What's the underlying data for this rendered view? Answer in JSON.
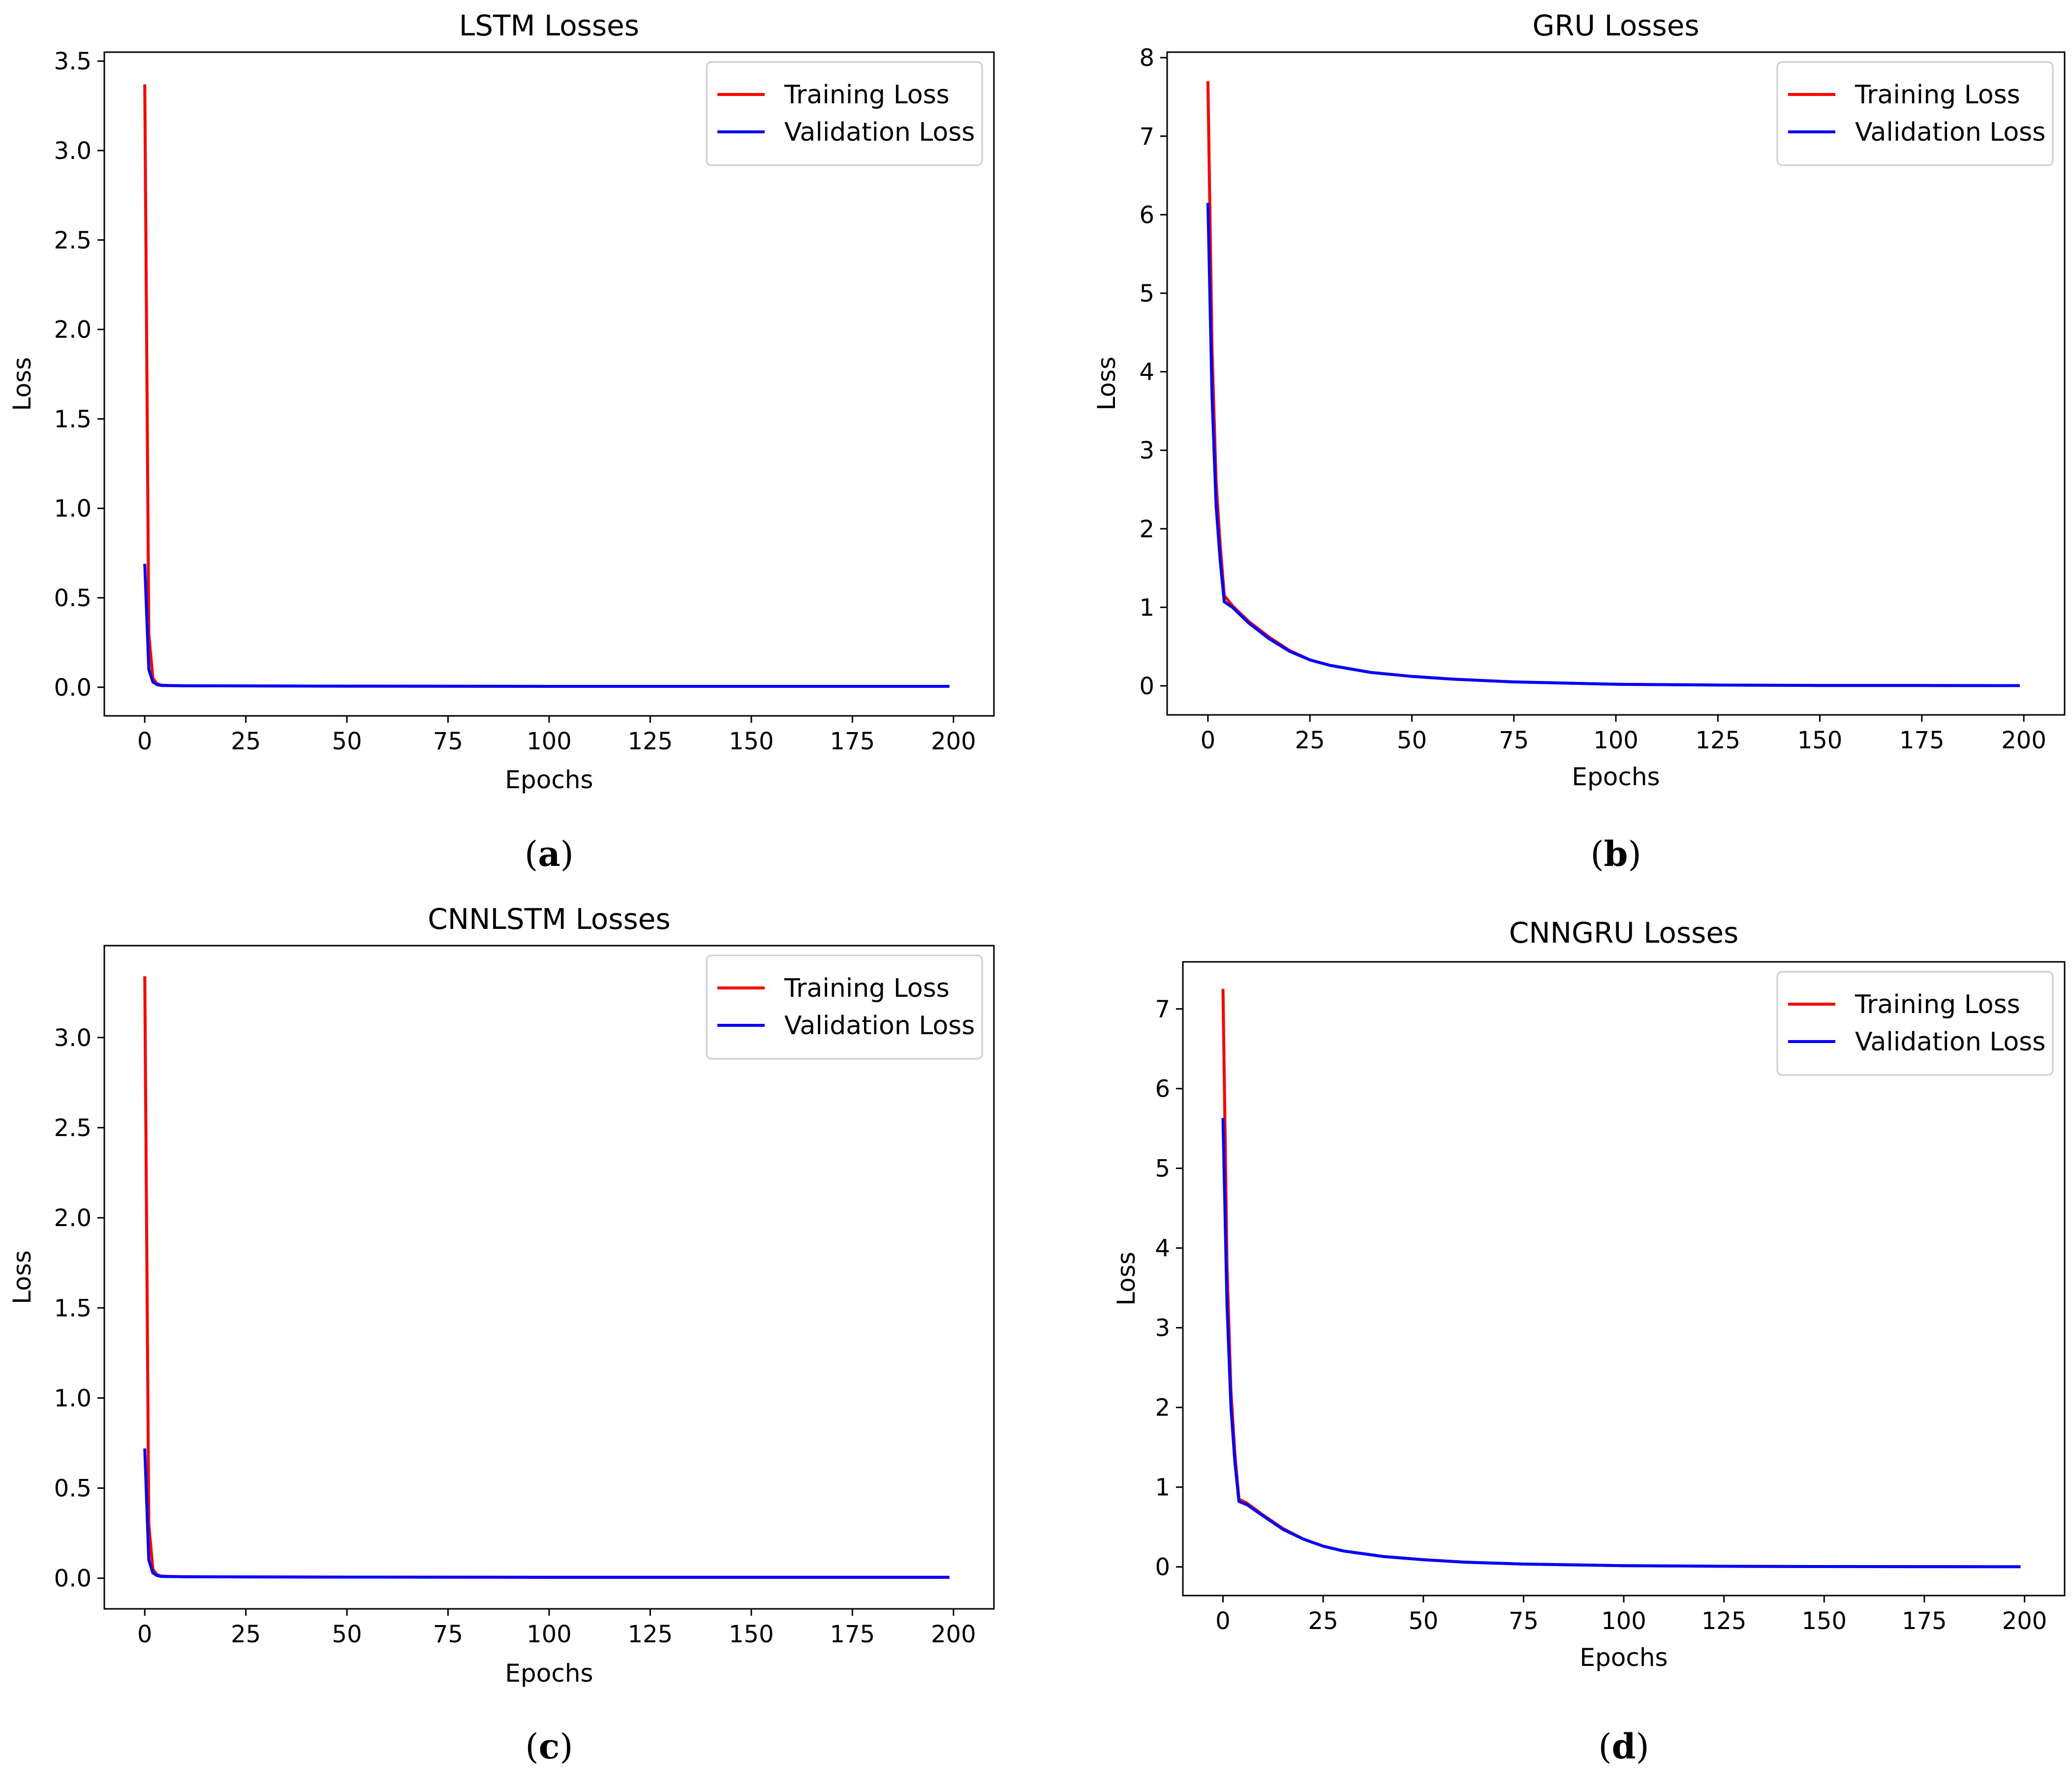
{
  "chart_data": [
    {
      "type": "line",
      "panel": "(a)",
      "panel_letter": "a",
      "title": "LSTM Losses",
      "xlabel": "Epochs",
      "ylabel": "Loss",
      "xlim": [
        -10,
        210
      ],
      "ylim": [
        -0.16,
        3.55
      ],
      "xticks": [
        0,
        25,
        50,
        75,
        100,
        125,
        150,
        175,
        200
      ],
      "xtick_labels": [
        "0",
        "25",
        "50",
        "75",
        "100",
        "125",
        "150",
        "175",
        "200"
      ],
      "yticks": [
        0.0,
        0.5,
        1.0,
        1.5,
        2.0,
        2.5,
        3.0,
        3.5
      ],
      "ytick_labels": [
        "0.0",
        "0.5",
        "1.0",
        "1.5",
        "2.0",
        "2.5",
        "3.0",
        "3.5"
      ],
      "legend": "top-right",
      "series": [
        {
          "name": "Training Loss",
          "color": "#ff0000",
          "x": [
            0,
            1,
            2,
            3,
            4,
            6,
            10,
            50,
            100,
            150,
            199
          ],
          "y": [
            3.37,
            0.3,
            0.05,
            0.02,
            0.012,
            0.01,
            0.008,
            0.006,
            0.005,
            0.005,
            0.005
          ]
        },
        {
          "name": "Validation Loss",
          "color": "#0000ff",
          "x": [
            0,
            1,
            2,
            3,
            4,
            6,
            10,
            50,
            100,
            150,
            199
          ],
          "y": [
            0.69,
            0.1,
            0.03,
            0.015,
            0.01,
            0.009,
            0.008,
            0.006,
            0.005,
            0.005,
            0.005
          ]
        }
      ]
    },
    {
      "type": "line",
      "panel": "(b)",
      "panel_letter": "b",
      "title": "GRU Losses",
      "xlabel": "Epochs",
      "ylabel": "Loss",
      "xlim": [
        -10,
        210
      ],
      "ylim": [
        -0.37,
        8.07
      ],
      "xticks": [
        0,
        25,
        50,
        75,
        100,
        125,
        150,
        175,
        200
      ],
      "xtick_labels": [
        "0",
        "25",
        "50",
        "75",
        "100",
        "125",
        "150",
        "175",
        "200"
      ],
      "yticks": [
        0,
        1,
        2,
        3,
        4,
        5,
        6,
        7,
        8
      ],
      "ytick_labels": [
        "0",
        "1",
        "2",
        "3",
        "4",
        "5",
        "6",
        "7",
        "8"
      ],
      "legend": "top-right",
      "series": [
        {
          "name": "Training Loss",
          "color": "#ff0000",
          "x": [
            0,
            1,
            2,
            3,
            4,
            6,
            10,
            15,
            20,
            25,
            30,
            40,
            50,
            60,
            75,
            100,
            125,
            150,
            175,
            199
          ],
          "y": [
            7.7,
            4.3,
            2.6,
            1.8,
            1.15,
            1.02,
            0.82,
            0.62,
            0.45,
            0.33,
            0.26,
            0.17,
            0.12,
            0.085,
            0.05,
            0.02,
            0.01,
            0.005,
            0.004,
            0.003
          ]
        },
        {
          "name": "Validation Loss",
          "color": "#0000ff",
          "x": [
            0,
            1,
            2,
            3,
            4,
            6,
            10,
            15,
            20,
            25,
            30,
            40,
            50,
            60,
            75,
            100,
            125,
            150,
            175,
            199
          ],
          "y": [
            6.15,
            3.7,
            2.3,
            1.6,
            1.07,
            1.0,
            0.8,
            0.6,
            0.44,
            0.33,
            0.26,
            0.17,
            0.12,
            0.085,
            0.05,
            0.02,
            0.01,
            0.005,
            0.004,
            0.003
          ]
        }
      ]
    },
    {
      "type": "line",
      "panel": "(c)",
      "panel_letter": "c",
      "title": "CNNLSTM Losses",
      "xlabel": "Epochs",
      "ylabel": "Loss",
      "xlim": [
        -10,
        210
      ],
      "ylim": [
        -0.17,
        3.51
      ],
      "xticks": [
        0,
        25,
        50,
        75,
        100,
        125,
        150,
        175,
        200
      ],
      "xtick_labels": [
        "0",
        "25",
        "50",
        "75",
        "100",
        "125",
        "150",
        "175",
        "200"
      ],
      "yticks": [
        0.0,
        0.5,
        1.0,
        1.5,
        2.0,
        2.5,
        3.0
      ],
      "ytick_labels": [
        "0.0",
        "0.5",
        "1.0",
        "1.5",
        "2.0",
        "2.5",
        "3.0"
      ],
      "legend": "top-right",
      "series": [
        {
          "name": "Training Loss",
          "color": "#ff0000",
          "x": [
            0,
            1,
            2,
            3,
            4,
            6,
            10,
            50,
            100,
            150,
            199
          ],
          "y": [
            3.34,
            0.3,
            0.05,
            0.02,
            0.012,
            0.01,
            0.008,
            0.006,
            0.005,
            0.005,
            0.005
          ]
        },
        {
          "name": "Validation Loss",
          "color": "#0000ff",
          "x": [
            0,
            1,
            2,
            3,
            4,
            6,
            10,
            50,
            100,
            150,
            199
          ],
          "y": [
            0.72,
            0.1,
            0.03,
            0.015,
            0.01,
            0.009,
            0.008,
            0.006,
            0.005,
            0.005,
            0.005
          ]
        }
      ]
    },
    {
      "type": "line",
      "panel": "(d)",
      "panel_letter": "d",
      "title": "CNNGRU Losses",
      "xlabel": "Epochs",
      "ylabel": "Loss",
      "xlim": [
        -10,
        210
      ],
      "ylim": [
        -0.36,
        7.59
      ],
      "xticks": [
        0,
        25,
        50,
        75,
        100,
        125,
        150,
        175,
        200
      ],
      "xtick_labels": [
        "0",
        "25",
        "50",
        "75",
        "100",
        "125",
        "150",
        "175",
        "200"
      ],
      "yticks": [
        0,
        1,
        2,
        3,
        4,
        5,
        6,
        7
      ],
      "ytick_labels": [
        "0",
        "1",
        "2",
        "3",
        "4",
        "5",
        "6",
        "7"
      ],
      "legend": "top-right",
      "series": [
        {
          "name": "Training Loss",
          "color": "#ff0000",
          "x": [
            0,
            1,
            2,
            3,
            4,
            6,
            10,
            15,
            20,
            25,
            30,
            40,
            50,
            60,
            75,
            100,
            125,
            150,
            175,
            199
          ],
          "y": [
            7.25,
            3.8,
            2.2,
            1.4,
            0.85,
            0.8,
            0.65,
            0.48,
            0.35,
            0.26,
            0.2,
            0.13,
            0.09,
            0.06,
            0.035,
            0.015,
            0.007,
            0.004,
            0.003,
            0.002
          ]
        },
        {
          "name": "Validation Loss",
          "color": "#0000ff",
          "x": [
            0,
            1,
            2,
            3,
            4,
            6,
            10,
            15,
            20,
            25,
            30,
            40,
            50,
            60,
            75,
            100,
            125,
            150,
            175,
            199
          ],
          "y": [
            5.63,
            3.3,
            2.0,
            1.3,
            0.82,
            0.78,
            0.64,
            0.47,
            0.35,
            0.26,
            0.2,
            0.13,
            0.09,
            0.06,
            0.035,
            0.015,
            0.007,
            0.004,
            0.003,
            0.002
          ]
        }
      ]
    }
  ]
}
